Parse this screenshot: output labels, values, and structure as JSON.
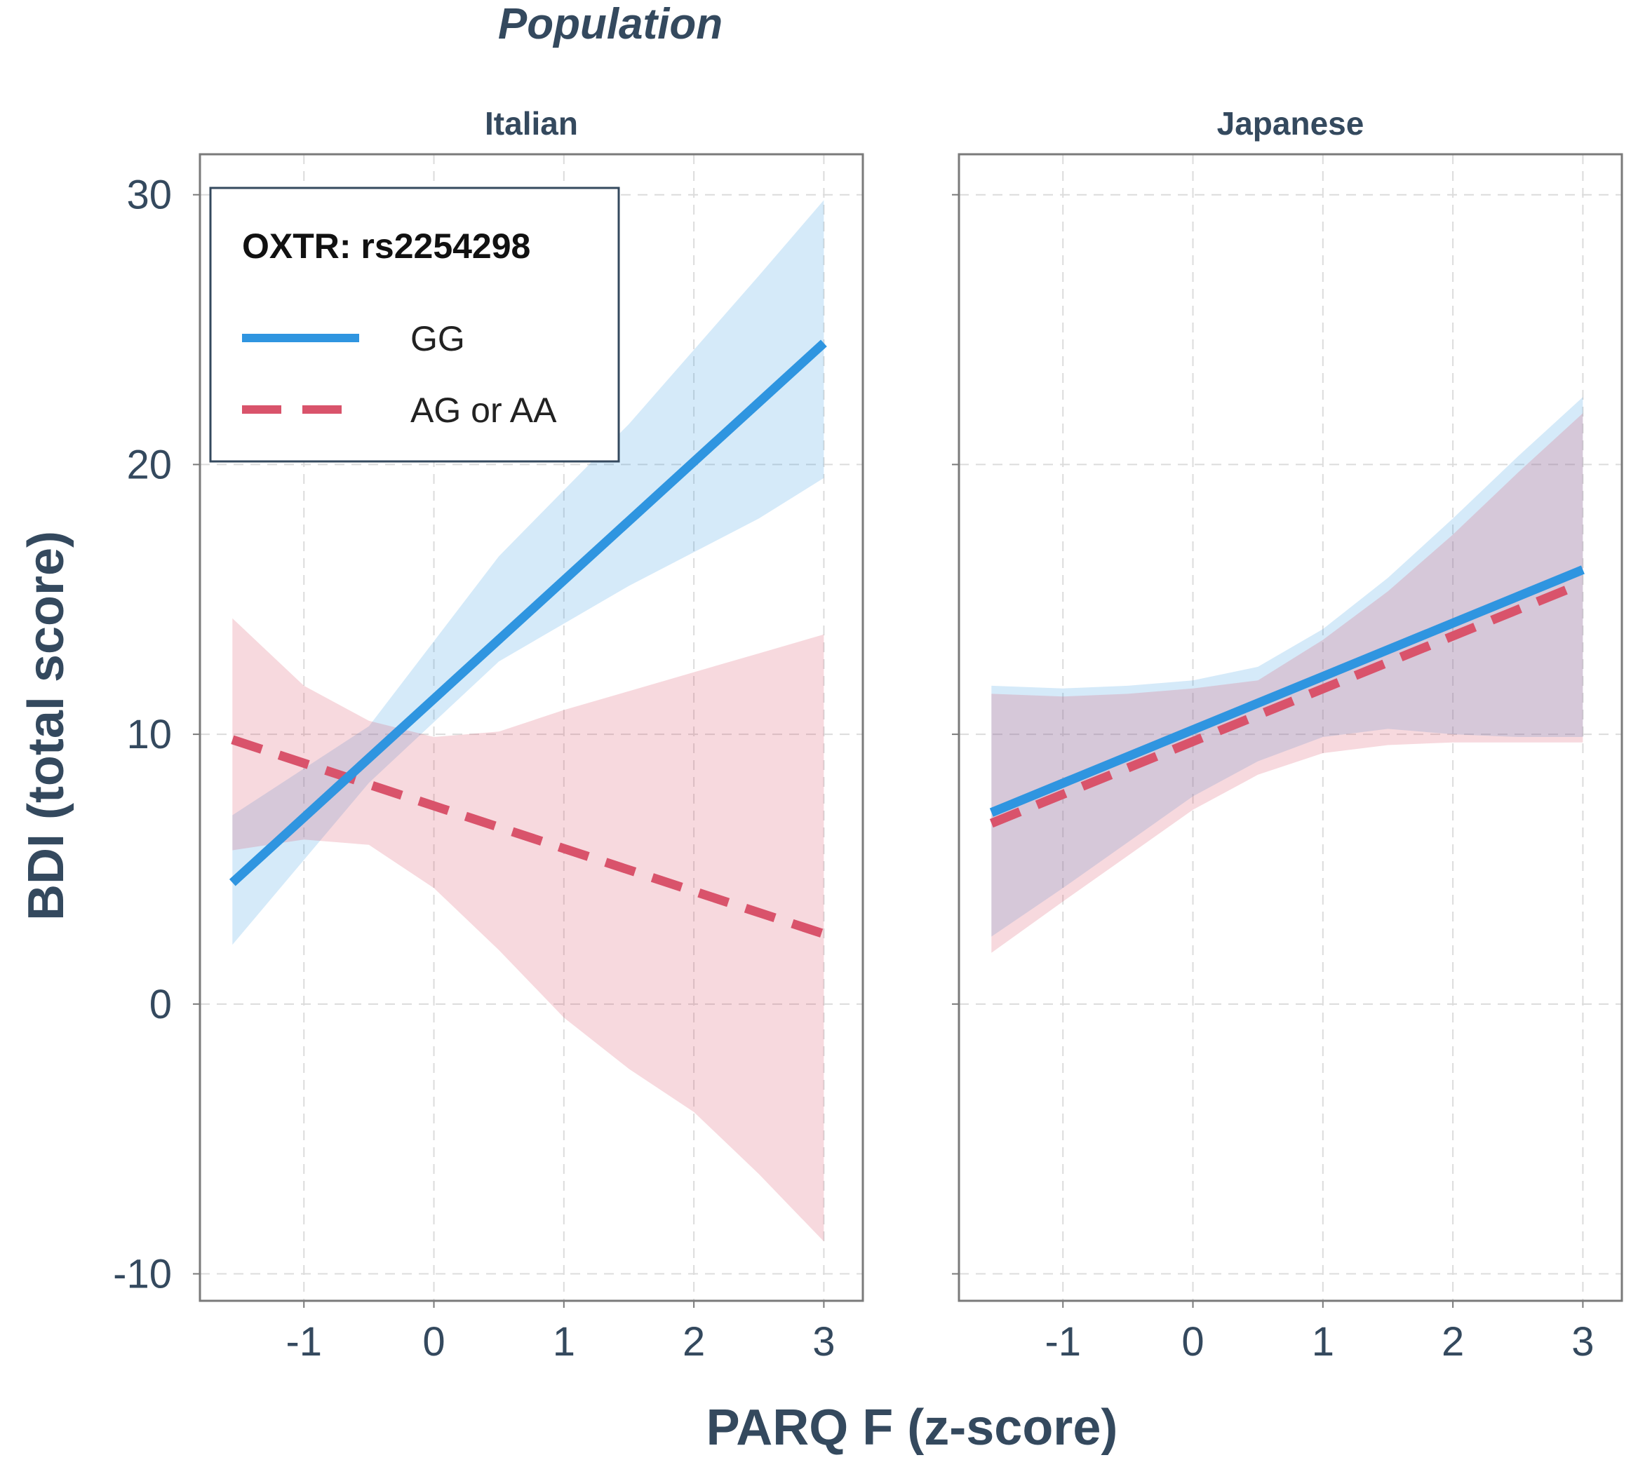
{
  "chart_data": {
    "type": "line",
    "title": "Population",
    "xlabel": "PARQ F (z-score)",
    "ylabel": "BDI (total score)",
    "xlim": [
      -1.8,
      3.3
    ],
    "ylim": [
      -11,
      31.5
    ],
    "xticks": [
      -1,
      0,
      1,
      2,
      3
    ],
    "xtick_labels": [
      "-1",
      "0",
      "1",
      "2",
      "3"
    ],
    "yticks": [
      -10,
      0,
      10,
      20,
      30
    ],
    "ytick_labels": [
      "-10",
      "0",
      "10",
      "20",
      "30"
    ],
    "grid": true,
    "legend": {
      "title": "OXTR: rs2254298",
      "position": "top-left (inside Italian panel)",
      "entries": [
        {
          "label": "GG",
          "color": "#2f95e0",
          "style": "solid"
        },
        {
          "label": "AG or AA",
          "color": "#d9536b",
          "style": "dashed"
        }
      ]
    },
    "panels": [
      {
        "name": "Italian",
        "series": [
          {
            "name": "GG",
            "color": "#2f95e0",
            "style": "solid",
            "x": [
              -1.55,
              3.0
            ],
            "y": [
              4.5,
              24.5
            ],
            "ribbon": {
              "x": [
                -1.55,
                -0.5,
                0.5,
                1.5,
                2.5,
                3.0
              ],
              "lower": [
                2.2,
                8.2,
                12.7,
                15.5,
                18.0,
                19.5
              ],
              "upper": [
                7.0,
                10.3,
                16.6,
                21.5,
                27.0,
                29.8
              ]
            }
          },
          {
            "name": "AG or AA",
            "color": "#d9536b",
            "style": "dashed",
            "x": [
              -1.55,
              3.0
            ],
            "y": [
              9.8,
              2.6
            ],
            "ribbon": {
              "x": [
                -1.55,
                -1.0,
                -0.5,
                0.0,
                0.5,
                1.0,
                1.5,
                2.0,
                2.5,
                3.0
              ],
              "lower": [
                5.7,
                6.1,
                5.9,
                4.3,
                2.0,
                -0.5,
                -2.4,
                -4.0,
                -6.3,
                -8.8
              ],
              "upper": [
                14.3,
                11.8,
                10.5,
                9.9,
                10.1,
                10.9,
                11.6,
                12.3,
                13.0,
                13.7
              ]
            }
          }
        ]
      },
      {
        "name": "Japanese",
        "series": [
          {
            "name": "GG",
            "color": "#2f95e0",
            "style": "solid",
            "x": [
              -1.55,
              3.0
            ],
            "y": [
              7.1,
              16.1
            ],
            "ribbon": {
              "x": [
                -1.55,
                -1.0,
                -0.5,
                0.0,
                0.5,
                1.0,
                1.5,
                2.0,
                2.5,
                3.0
              ],
              "lower": [
                2.5,
                4.3,
                6.0,
                7.7,
                9.0,
                9.9,
                10.2,
                10.0,
                9.9,
                9.9
              ],
              "upper": [
                11.8,
                11.7,
                11.8,
                12.0,
                12.5,
                13.9,
                15.8,
                18.0,
                20.3,
                22.5
              ]
            }
          },
          {
            "name": "AG or AA",
            "color": "#d9536b",
            "style": "dashed",
            "x": [
              -1.55,
              3.0
            ],
            "y": [
              6.7,
              15.6
            ],
            "ribbon": {
              "x": [
                -1.55,
                -1.0,
                -0.5,
                0.0,
                0.5,
                1.0,
                1.5,
                2.0,
                2.5,
                3.0
              ],
              "lower": [
                1.9,
                3.8,
                5.5,
                7.2,
                8.5,
                9.3,
                9.6,
                9.7,
                9.7,
                9.7
              ],
              "upper": [
                11.5,
                11.4,
                11.5,
                11.7,
                12.0,
                13.5,
                15.3,
                17.4,
                19.7,
                21.9
              ]
            }
          }
        ]
      }
    ]
  }
}
